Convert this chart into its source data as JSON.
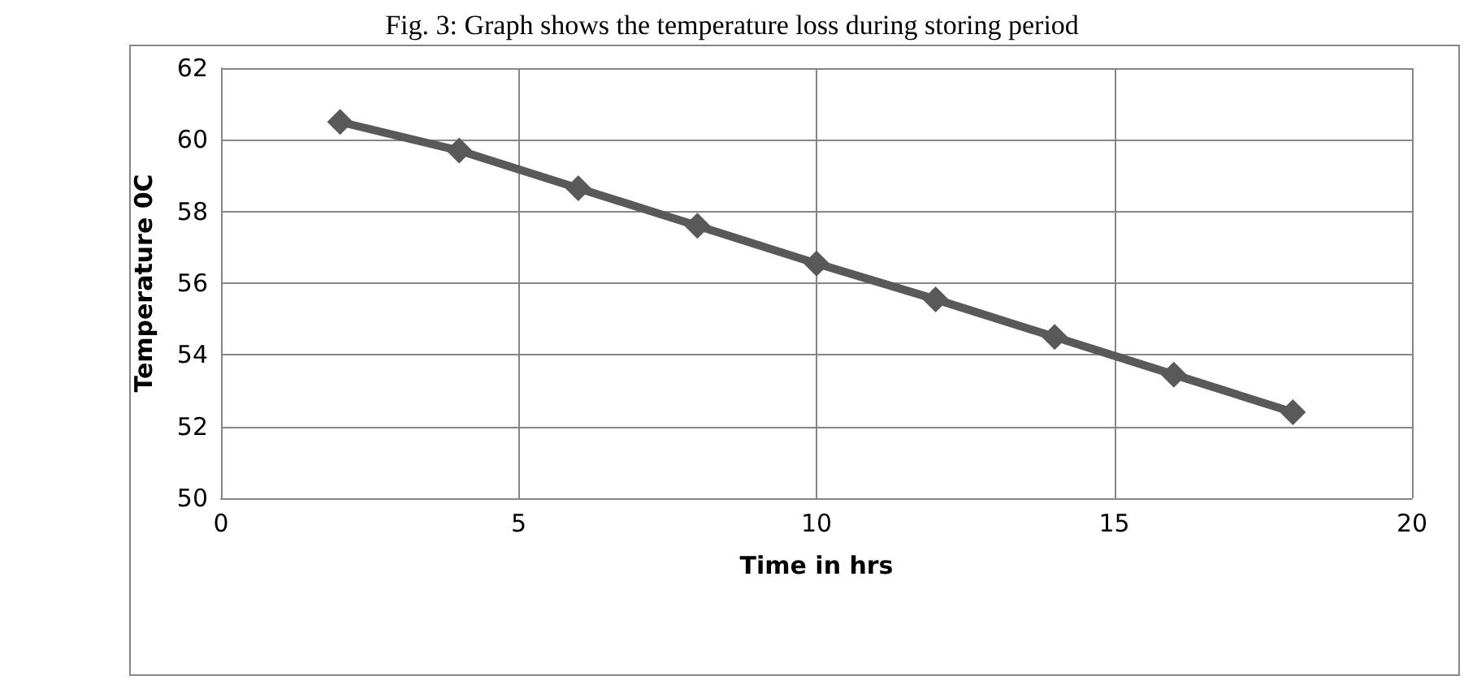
{
  "chart_data": {
    "type": "line",
    "title": "Fig. 3: Graph shows the temperature loss during storing period",
    "xlabel": "Time in hrs",
    "ylabel": "Temperature 0C",
    "x": [
      2,
      4,
      6,
      8,
      10,
      12,
      14,
      16,
      18
    ],
    "series": [
      {
        "color": "#595959",
        "values": [
          60.5,
          59.7,
          58.65,
          57.6,
          56.55,
          55.55,
          54.5,
          53.45,
          52.4
        ]
      }
    ],
    "xlim": [
      0,
      20
    ],
    "xticks": [
      0,
      5,
      10,
      15,
      20
    ],
    "ylim": [
      50,
      62
    ],
    "yticks": [
      50,
      52,
      54,
      56,
      58,
      60,
      62
    ],
    "grid": true,
    "marker": "diamond",
    "line_style": "solid"
  }
}
